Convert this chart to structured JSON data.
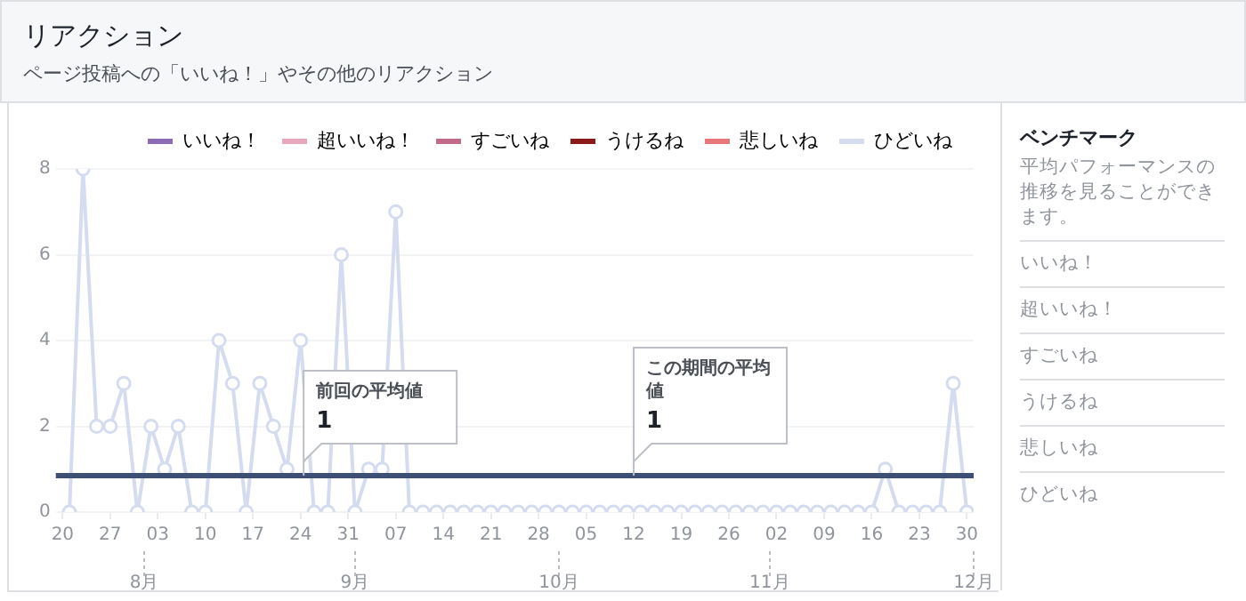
{
  "chart_data": [
    {
      "type": "line",
      "title": "リアクション",
      "subtitle": "ページ投稿への「いいね！」やその他のリアクション",
      "x": [
        "--07-21",
        "--07-23",
        "--07-25",
        "--07-27",
        "--07-29",
        "--07-31",
        "--08-02",
        "--08-04",
        "--08-06",
        "--08-08",
        "--08-10",
        "--08-12",
        "--08-14",
        "--08-16",
        "--08-18",
        "--08-20",
        "--08-22",
        "--08-24",
        "--08-26",
        "--08-28",
        "--08-30",
        "--09-01",
        "--09-03",
        "--09-05",
        "--09-07",
        "--09-09",
        "--09-11",
        "--09-13",
        "--09-15",
        "--09-17",
        "--09-19",
        "--09-21",
        "--09-23",
        "--09-25",
        "--09-27",
        "--09-29",
        "--10-01",
        "--10-03",
        "--10-05",
        "--10-07",
        "--10-09",
        "--10-11",
        "--10-13",
        "--10-15",
        "--10-17",
        "--10-19",
        "--10-21",
        "--10-23",
        "--10-25",
        "--10-27",
        "--10-29",
        "--10-31",
        "--11-02",
        "--11-04",
        "--11-06",
        "--11-08",
        "--11-10",
        "--11-12",
        "--11-14",
        "--11-16",
        "--11-18",
        "--11-20",
        "--11-22",
        "--11-24",
        "--11-26",
        "--11-28",
        "--11-30"
      ],
      "series": [
        {
          "name": "いいね！",
          "color": "#8e6bb5",
          "values": [
            null,
            null,
            null,
            null,
            null,
            null,
            null,
            null,
            null,
            null,
            null,
            null,
            null,
            null,
            null,
            null,
            null,
            null,
            null,
            null,
            null,
            null,
            null,
            null,
            null,
            null,
            null,
            null,
            null,
            null,
            null,
            null,
            null,
            null,
            null,
            null,
            null,
            null,
            null,
            null,
            null,
            null,
            null,
            null,
            null,
            null,
            null,
            null,
            null,
            null,
            null,
            null,
            null,
            null,
            null,
            null,
            null,
            null,
            null,
            null,
            null,
            null,
            null,
            null,
            null,
            null,
            null
          ]
        },
        {
          "name": "超いいね！",
          "color": "#e8a7bd",
          "values": [
            null,
            null,
            null,
            null,
            null,
            null,
            null,
            null,
            null,
            null,
            null,
            null,
            null,
            null,
            null,
            null,
            null,
            null,
            null,
            null,
            null,
            null,
            null,
            null,
            null,
            null,
            null,
            null,
            null,
            null,
            null,
            null,
            null,
            null,
            null,
            null,
            null,
            null,
            null,
            null,
            null,
            null,
            null,
            null,
            null,
            null,
            null,
            null,
            null,
            null,
            null,
            null,
            null,
            null,
            null,
            null,
            null,
            null,
            null,
            null,
            null,
            null,
            null,
            null,
            null,
            null,
            null
          ]
        },
        {
          "name": "すごいね",
          "color": "#c06b8a",
          "values": [
            null,
            null,
            null,
            null,
            null,
            null,
            null,
            null,
            null,
            null,
            null,
            null,
            null,
            null,
            null,
            null,
            null,
            null,
            null,
            null,
            null,
            null,
            null,
            null,
            null,
            null,
            null,
            null,
            null,
            null,
            null,
            null,
            null,
            null,
            null,
            null,
            null,
            null,
            null,
            null,
            null,
            null,
            null,
            null,
            null,
            null,
            null,
            null,
            null,
            null,
            null,
            null,
            null,
            null,
            null,
            null,
            null,
            null,
            null,
            null,
            null,
            null,
            null,
            null,
            null,
            null,
            null
          ]
        },
        {
          "name": "うけるね",
          "color": "#8b1a1a",
          "values": [
            null,
            null,
            null,
            null,
            null,
            null,
            null,
            null,
            null,
            null,
            null,
            null,
            null,
            null,
            null,
            null,
            null,
            null,
            null,
            null,
            null,
            null,
            null,
            null,
            null,
            null,
            null,
            null,
            null,
            null,
            null,
            null,
            null,
            null,
            null,
            null,
            null,
            null,
            null,
            null,
            null,
            null,
            null,
            null,
            null,
            null,
            null,
            null,
            null,
            null,
            null,
            null,
            null,
            null,
            null,
            null,
            null,
            null,
            null,
            null,
            null,
            null,
            null,
            null,
            null,
            null,
            null
          ]
        },
        {
          "name": "悲しいね",
          "color": "#e8777a",
          "values": [
            null,
            null,
            null,
            null,
            null,
            null,
            null,
            null,
            null,
            null,
            null,
            null,
            null,
            null,
            null,
            null,
            null,
            null,
            null,
            null,
            null,
            null,
            null,
            null,
            null,
            null,
            null,
            null,
            null,
            null,
            null,
            null,
            null,
            null,
            null,
            null,
            null,
            null,
            null,
            null,
            null,
            null,
            null,
            null,
            null,
            null,
            null,
            null,
            null,
            null,
            null,
            null,
            null,
            null,
            null,
            null,
            null,
            null,
            null,
            null,
            null,
            null,
            null,
            null,
            null,
            null,
            null
          ]
        },
        {
          "name": "ひどいね",
          "color": "#d5dcf0",
          "values": [
            0,
            8,
            2,
            2,
            3,
            0,
            2,
            1,
            2,
            0,
            0,
            4,
            3,
            0,
            3,
            2,
            1,
            4,
            0,
            0,
            6,
            0,
            1,
            1,
            7,
            0,
            0,
            0,
            0,
            0,
            0,
            0,
            0,
            0,
            0,
            0,
            0,
            0,
            0,
            0,
            0,
            0,
            0,
            0,
            0,
            0,
            0,
            0,
            0,
            0,
            0,
            0,
            0,
            0,
            0,
            0,
            0,
            0,
            0,
            0,
            1,
            0,
            0,
            0,
            0,
            3,
            0
          ]
        }
      ],
      "xlim": [
        "--07-19",
        "--12-01"
      ],
      "xticks": [
        {
          "value": "--07-20",
          "label": "20"
        },
        {
          "value": "--07-27",
          "label": "27"
        },
        {
          "value": "--08-03",
          "label": "03"
        },
        {
          "value": "--08-10",
          "label": "10"
        },
        {
          "value": "--08-17",
          "label": "17"
        },
        {
          "value": "--08-24",
          "label": "24"
        },
        {
          "value": "--08-31",
          "label": "31"
        },
        {
          "value": "--09-07",
          "label": "07"
        },
        {
          "value": "--09-14",
          "label": "14"
        },
        {
          "value": "--09-21",
          "label": "21"
        },
        {
          "value": "--09-28",
          "label": "28"
        },
        {
          "value": "--10-05",
          "label": "05"
        },
        {
          "value": "--10-12",
          "label": "12"
        },
        {
          "value": "--10-19",
          "label": "19"
        },
        {
          "value": "--10-26",
          "label": "26"
        },
        {
          "value": "--11-02",
          "label": "02"
        },
        {
          "value": "--11-09",
          "label": "09"
        },
        {
          "value": "--11-16",
          "label": "16"
        },
        {
          "value": "--11-23",
          "label": "23"
        },
        {
          "value": "--11-30",
          "label": "30"
        }
      ],
      "x2lim": [
        "--07-19",
        "--12-01"
      ],
      "x2ticks": [
        {
          "value": "--08-01",
          "label": "8月"
        },
        {
          "value": "--09-01",
          "label": "9月"
        },
        {
          "value": "--10-01",
          "label": "10月"
        },
        {
          "value": "--11-01",
          "label": "11月"
        },
        {
          "value": "--12-01",
          "label": "12月"
        }
      ],
      "ylim": [
        0,
        8
      ],
      "yticks": [
        0,
        2,
        4,
        6,
        8
      ],
      "ref_lines": [
        {
          "axis": "y",
          "value": 0.85,
          "label": "前回の平均値\n1",
          "color": "#3d4f74"
        }
      ],
      "annotations": [
        {
          "text": "この期間の平均値\n1",
          "x": "--10-12",
          "y": 0.85
        }
      ],
      "grid": "y",
      "legend": "top",
      "marker": "circle",
      "line_style": "solid"
    },
    {
      "type": "other",
      "title": "ベンチマーク",
      "subtitle": "平均パフォーマンスの推移を見ることができます。",
      "annotations": [
        "いいね！",
        "超いいね！",
        "すごいね",
        "うけるね",
        "悲しいね",
        "ひどいね"
      ]
    }
  ]
}
